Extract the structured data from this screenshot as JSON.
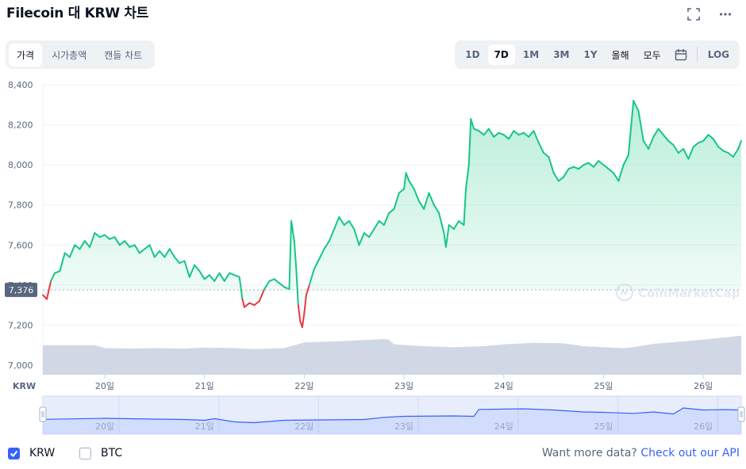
{
  "header": {
    "title": "Filecoin 대 KRW 차트",
    "fullscreen_icon": "fullscreen-icon",
    "more_icon": "more-icon"
  },
  "tabs": [
    {
      "label": "가격",
      "active": true
    },
    {
      "label": "시가총액",
      "active": false
    },
    {
      "label": "캔들 차트",
      "active": false
    }
  ],
  "ranges": [
    {
      "label": "1D",
      "active": false
    },
    {
      "label": "7D",
      "active": true
    },
    {
      "label": "1M",
      "active": false
    },
    {
      "label": "3M",
      "active": false
    },
    {
      "label": "1Y",
      "active": false
    },
    {
      "label": "올해",
      "active": false
    },
    {
      "label": "모두",
      "active": false
    }
  ],
  "calendar_icon": "calendar-icon",
  "log_label": "LOG",
  "legend": [
    {
      "label": "KRW",
      "checked": true
    },
    {
      "label": "BTC",
      "checked": false
    }
  ],
  "footer": {
    "text": "Want more data?",
    "link": "Check out our API"
  },
  "watermark": "CoinMarketCap",
  "colors": {
    "up": "#16c784",
    "down": "#ea3943",
    "volume": "#cfd6e4",
    "navigator": "#3861fb",
    "accent": "#3861fb"
  },
  "chart_data": {
    "type": "line",
    "currency_label": "KRW",
    "yticks": [
      7000,
      7200,
      7400,
      7600,
      7800,
      8000,
      8200,
      8400
    ],
    "ylim": [
      7000,
      8400
    ],
    "xlim": [
      19.38,
      26.38
    ],
    "xticks": [
      {
        "label": "20일",
        "value": 20
      },
      {
        "label": "21일",
        "value": 21
      },
      {
        "label": "22일",
        "value": 22
      },
      {
        "label": "23일",
        "value": 23
      },
      {
        "label": "24일",
        "value": 24
      },
      {
        "label": "25일",
        "value": 25
      },
      {
        "label": "26일",
        "value": 26
      }
    ],
    "reference_price": 7376,
    "reference_label": "7,376",
    "grid": true,
    "series": [
      {
        "points": [
          [
            19.38,
            7350
          ],
          [
            19.42,
            7330
          ],
          [
            19.46,
            7420
          ],
          [
            19.5,
            7460
          ],
          [
            19.55,
            7470
          ],
          [
            19.6,
            7560
          ],
          [
            19.65,
            7540
          ],
          [
            19.7,
            7600
          ],
          [
            19.75,
            7580
          ],
          [
            19.8,
            7620
          ],
          [
            19.85,
            7590
          ],
          [
            19.9,
            7660
          ],
          [
            19.95,
            7640
          ],
          [
            20.0,
            7650
          ],
          [
            20.05,
            7630
          ],
          [
            20.1,
            7640
          ],
          [
            20.15,
            7600
          ],
          [
            20.2,
            7620
          ],
          [
            20.25,
            7590
          ],
          [
            20.3,
            7600
          ],
          [
            20.35,
            7560
          ],
          [
            20.4,
            7580
          ],
          [
            20.45,
            7600
          ],
          [
            20.5,
            7540
          ],
          [
            20.55,
            7570
          ],
          [
            20.6,
            7540
          ],
          [
            20.65,
            7580
          ],
          [
            20.7,
            7540
          ],
          [
            20.75,
            7510
          ],
          [
            20.8,
            7520
          ],
          [
            20.85,
            7440
          ],
          [
            20.9,
            7500
          ],
          [
            20.95,
            7470
          ],
          [
            21.0,
            7430
          ],
          [
            21.05,
            7450
          ],
          [
            21.1,
            7420
          ],
          [
            21.15,
            7460
          ],
          [
            21.2,
            7420
          ],
          [
            21.25,
            7460
          ],
          [
            21.3,
            7450
          ],
          [
            21.35,
            7440
          ],
          [
            21.38,
            7330
          ],
          [
            21.4,
            7290
          ],
          [
            21.45,
            7310
          ],
          [
            21.5,
            7300
          ],
          [
            21.55,
            7320
          ],
          [
            21.6,
            7380
          ],
          [
            21.65,
            7420
          ],
          [
            21.7,
            7430
          ],
          [
            21.75,
            7410
          ],
          [
            21.8,
            7390
          ],
          [
            21.85,
            7380
          ],
          [
            21.87,
            7720
          ],
          [
            21.9,
            7620
          ],
          [
            21.92,
            7480
          ],
          [
            21.94,
            7300
          ],
          [
            21.96,
            7220
          ],
          [
            21.98,
            7190
          ],
          [
            22.0,
            7260
          ],
          [
            22.02,
            7350
          ],
          [
            22.05,
            7400
          ],
          [
            22.1,
            7480
          ],
          [
            22.15,
            7530
          ],
          [
            22.2,
            7580
          ],
          [
            22.25,
            7620
          ],
          [
            22.3,
            7680
          ],
          [
            22.35,
            7740
          ],
          [
            22.4,
            7700
          ],
          [
            22.45,
            7720
          ],
          [
            22.5,
            7680
          ],
          [
            22.55,
            7600
          ],
          [
            22.6,
            7660
          ],
          [
            22.65,
            7640
          ],
          [
            22.7,
            7680
          ],
          [
            22.75,
            7720
          ],
          [
            22.8,
            7700
          ],
          [
            22.85,
            7760
          ],
          [
            22.9,
            7780
          ],
          [
            22.95,
            7860
          ],
          [
            23.0,
            7880
          ],
          [
            23.02,
            7960
          ],
          [
            23.05,
            7920
          ],
          [
            23.1,
            7880
          ],
          [
            23.15,
            7820
          ],
          [
            23.2,
            7780
          ],
          [
            23.25,
            7860
          ],
          [
            23.3,
            7800
          ],
          [
            23.35,
            7760
          ],
          [
            23.4,
            7660
          ],
          [
            23.42,
            7590
          ],
          [
            23.45,
            7700
          ],
          [
            23.5,
            7680
          ],
          [
            23.55,
            7720
          ],
          [
            23.6,
            7700
          ],
          [
            23.62,
            7880
          ],
          [
            23.65,
            8000
          ],
          [
            23.67,
            8230
          ],
          [
            23.7,
            8180
          ],
          [
            23.75,
            8170
          ],
          [
            23.8,
            8150
          ],
          [
            23.85,
            8180
          ],
          [
            23.9,
            8140
          ],
          [
            23.95,
            8160
          ],
          [
            24.0,
            8150
          ],
          [
            24.05,
            8130
          ],
          [
            24.1,
            8170
          ],
          [
            24.15,
            8150
          ],
          [
            24.2,
            8160
          ],
          [
            24.25,
            8140
          ],
          [
            24.3,
            8170
          ],
          [
            24.35,
            8110
          ],
          [
            24.4,
            8060
          ],
          [
            24.45,
            8040
          ],
          [
            24.5,
            7960
          ],
          [
            24.55,
            7920
          ],
          [
            24.6,
            7940
          ],
          [
            24.65,
            7980
          ],
          [
            24.7,
            7990
          ],
          [
            24.75,
            7980
          ],
          [
            24.8,
            8000
          ],
          [
            24.85,
            8010
          ],
          [
            24.9,
            7990
          ],
          [
            24.95,
            8020
          ],
          [
            25.0,
            8000
          ],
          [
            25.05,
            7980
          ],
          [
            25.1,
            7960
          ],
          [
            25.15,
            7920
          ],
          [
            25.2,
            8000
          ],
          [
            25.25,
            8050
          ],
          [
            25.3,
            8320
          ],
          [
            25.35,
            8270
          ],
          [
            25.4,
            8120
          ],
          [
            25.45,
            8080
          ],
          [
            25.5,
            8140
          ],
          [
            25.55,
            8180
          ],
          [
            25.6,
            8150
          ],
          [
            25.65,
            8120
          ],
          [
            25.7,
            8100
          ],
          [
            25.75,
            8060
          ],
          [
            25.8,
            8080
          ],
          [
            25.85,
            8030
          ],
          [
            25.9,
            8090
          ],
          [
            25.95,
            8110
          ],
          [
            26.0,
            8120
          ],
          [
            26.05,
            8150
          ],
          [
            26.1,
            8130
          ],
          [
            26.15,
            8090
          ],
          [
            26.2,
            8070
          ],
          [
            26.25,
            8060
          ],
          [
            26.3,
            8040
          ],
          [
            26.35,
            8080
          ],
          [
            26.38,
            8120
          ]
        ]
      }
    ],
    "volume": [
      [
        19.38,
        0.62
      ],
      [
        19.7,
        0.62
      ],
      [
        19.9,
        0.62
      ],
      [
        20.0,
        0.56
      ],
      [
        20.3,
        0.55
      ],
      [
        20.5,
        0.56
      ],
      [
        20.8,
        0.55
      ],
      [
        21.0,
        0.57
      ],
      [
        21.3,
        0.56
      ],
      [
        21.5,
        0.54
      ],
      [
        21.8,
        0.56
      ],
      [
        21.9,
        0.62
      ],
      [
        22.0,
        0.68
      ],
      [
        22.3,
        0.7
      ],
      [
        22.6,
        0.73
      ],
      [
        22.8,
        0.75
      ],
      [
        22.85,
        0.74
      ],
      [
        22.9,
        0.64
      ],
      [
        23.2,
        0.6
      ],
      [
        23.5,
        0.58
      ],
      [
        23.8,
        0.6
      ],
      [
        24.0,
        0.64
      ],
      [
        24.3,
        0.67
      ],
      [
        24.6,
        0.66
      ],
      [
        24.8,
        0.6
      ],
      [
        25.0,
        0.58
      ],
      [
        25.2,
        0.56
      ],
      [
        25.3,
        0.58
      ],
      [
        25.5,
        0.65
      ],
      [
        25.8,
        0.7
      ],
      [
        26.1,
        0.76
      ],
      [
        26.38,
        0.82
      ]
    ],
    "navigator": [
      [
        19.38,
        0.35
      ],
      [
        20.0,
        0.4
      ],
      [
        20.5,
        0.36
      ],
      [
        20.8,
        0.34
      ],
      [
        21.0,
        0.3
      ],
      [
        21.1,
        0.38
      ],
      [
        21.3,
        0.22
      ],
      [
        21.5,
        0.18
      ],
      [
        21.8,
        0.3
      ],
      [
        22.2,
        0.32
      ],
      [
        22.6,
        0.34
      ],
      [
        22.8,
        0.45
      ],
      [
        23.0,
        0.5
      ],
      [
        23.5,
        0.52
      ],
      [
        23.7,
        0.5
      ],
      [
        23.75,
        0.85
      ],
      [
        24.2,
        0.88
      ],
      [
        24.5,
        0.82
      ],
      [
        24.8,
        0.72
      ],
      [
        25.0,
        0.7
      ],
      [
        25.3,
        0.65
      ],
      [
        25.5,
        0.72
      ],
      [
        25.7,
        0.62
      ],
      [
        25.8,
        0.92
      ],
      [
        26.0,
        0.82
      ],
      [
        26.2,
        0.84
      ],
      [
        26.38,
        0.82
      ]
    ]
  }
}
